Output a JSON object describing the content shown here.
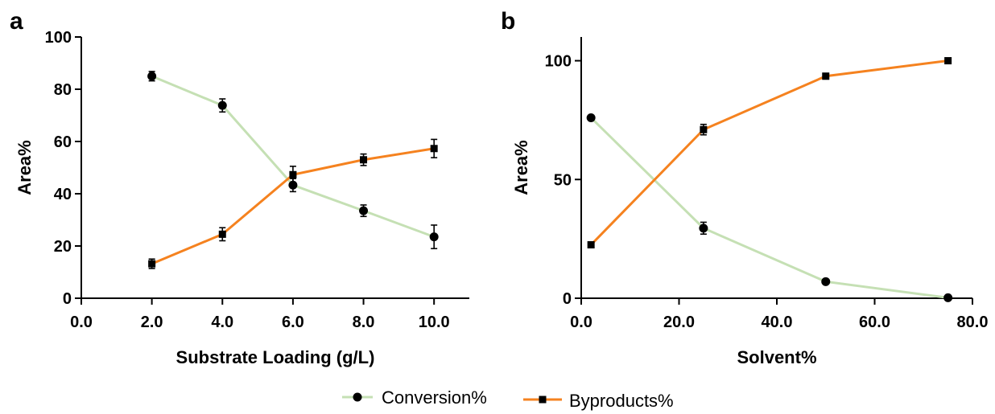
{
  "colors": {
    "conversion": "#c5e0b4",
    "byproducts": "#f5821f",
    "marker": "#000000"
  },
  "legend": {
    "conversion": "Conversion%",
    "byproducts": "Byproducts%"
  },
  "chart_data": [
    {
      "type": "line",
      "panel_label": "a",
      "xlabel": "Substrate Loading (g/L)",
      "ylabel": "Area%",
      "xlim": [
        0,
        11
      ],
      "ylim": [
        0,
        100
      ],
      "xticks": [
        0,
        2,
        4,
        6,
        8,
        10
      ],
      "xtick_labels": [
        "0.0",
        "2.0",
        "4.0",
        "6.0",
        "8.0",
        "10.0"
      ],
      "yticks": [
        0,
        20,
        40,
        60,
        80,
        100
      ],
      "ytick_labels": [
        "0",
        "20",
        "40",
        "60",
        "80",
        "100"
      ],
      "series": [
        {
          "name": "Conversion%",
          "marker": "circle",
          "x": [
            2,
            4,
            6,
            8,
            10
          ],
          "y": [
            85,
            73.8,
            43.3,
            33.5,
            23.5
          ],
          "err": [
            1.8,
            2.5,
            2.5,
            2.2,
            4.5
          ]
        },
        {
          "name": "Byproducts%",
          "marker": "square",
          "x": [
            2,
            4,
            6,
            8,
            10
          ],
          "y": [
            13.2,
            24.5,
            47.3,
            53,
            57.3
          ],
          "err": [
            1.8,
            2.5,
            3.2,
            2.2,
            3.5
          ]
        }
      ]
    },
    {
      "type": "line",
      "panel_label": "b",
      "xlabel": "Solvent%",
      "ylabel": "Area%",
      "xlim": [
        0,
        80
      ],
      "ylim": [
        0,
        110
      ],
      "xticks": [
        0,
        20,
        40,
        60,
        80
      ],
      "xtick_labels": [
        "0.0",
        "20.0",
        "40.0",
        "60.0",
        "80.0"
      ],
      "yticks": [
        0,
        50,
        100
      ],
      "ytick_labels": [
        "0",
        "50",
        "100"
      ],
      "series": [
        {
          "name": "Conversion%",
          "marker": "circle",
          "x": [
            2,
            25,
            50,
            75
          ],
          "y": [
            76,
            29.5,
            7,
            0.2
          ],
          "err": [
            0.8,
            2.5,
            0.8,
            0.5
          ]
        },
        {
          "name": "Byproducts%",
          "marker": "square",
          "x": [
            2,
            25,
            50,
            75
          ],
          "y": [
            22.5,
            71,
            93.5,
            100
          ],
          "err": [
            1,
            2.2,
            1.2,
            0.5
          ]
        }
      ]
    }
  ]
}
